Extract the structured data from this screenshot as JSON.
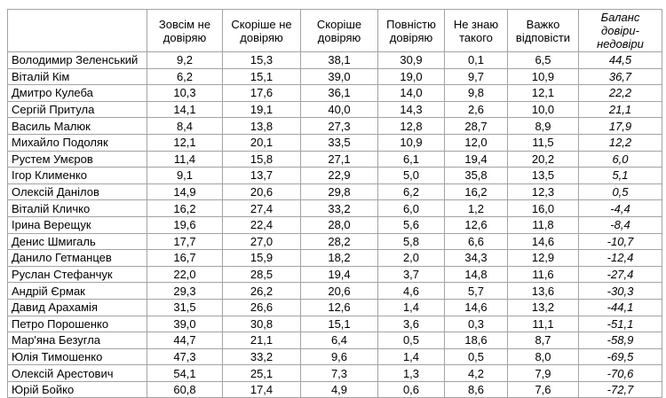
{
  "chart_data": {
    "type": "table",
    "title": "",
    "columns": [
      "",
      "Зовсім не довіряю",
      "Скоріше не довіряю",
      "Скоріше довіряю",
      "Повністю довіряю",
      "Не знаю такого",
      "Важко відповісти",
      "Баланс довіри-недовіри"
    ],
    "rows": [
      {
        "name": "Володимир Зеленський",
        "values": [
          "9,2",
          "15,3",
          "38,1",
          "30,9",
          "0,1",
          "6,5"
        ],
        "balance": "44,5"
      },
      {
        "name": "Віталій Кім",
        "values": [
          "6,2",
          "15,1",
          "39,0",
          "19,0",
          "9,7",
          "10,9"
        ],
        "balance": "36,7"
      },
      {
        "name": "Дмитро Кулеба",
        "values": [
          "10,3",
          "17,6",
          "36,1",
          "14,0",
          "9,8",
          "12,1"
        ],
        "balance": "22,2"
      },
      {
        "name": "Сергій Притула",
        "values": [
          "14,1",
          "19,1",
          "40,0",
          "14,3",
          "2,6",
          "10,0"
        ],
        "balance": "21,1"
      },
      {
        "name": "Василь Малюк",
        "values": [
          "8,4",
          "13,8",
          "27,3",
          "12,8",
          "28,7",
          "8,9"
        ],
        "balance": "17,9"
      },
      {
        "name": "Михайло Подоляк",
        "values": [
          "12,1",
          "20,1",
          "33,5",
          "10,9",
          "12,0",
          "11,5"
        ],
        "balance": "12,2"
      },
      {
        "name": "Рустем Умєров",
        "values": [
          "11,4",
          "15,8",
          "27,1",
          "6,1",
          "19,4",
          "20,2"
        ],
        "balance": "6,0"
      },
      {
        "name": "Ігор Клименко",
        "values": [
          "9,1",
          "13,7",
          "22,9",
          "5,0",
          "35,8",
          "13,5"
        ],
        "balance": "5,1"
      },
      {
        "name": "Олексій Данілов",
        "values": [
          "14,9",
          "20,6",
          "29,8",
          "6,2",
          "16,2",
          "12,3"
        ],
        "balance": "0,5"
      },
      {
        "name": "Віталій Кличко",
        "values": [
          "16,2",
          "27,4",
          "33,2",
          "6,0",
          "1,2",
          "16,0"
        ],
        "balance": "-4,4"
      },
      {
        "name": "Ірина Верещук",
        "values": [
          "19,6",
          "22,4",
          "28,0",
          "5,6",
          "12,6",
          "11,8"
        ],
        "balance": "-8,4"
      },
      {
        "name": "Денис Шмигаль",
        "values": [
          "17,7",
          "27,0",
          "28,2",
          "5,8",
          "6,6",
          "14,6"
        ],
        "balance": "-10,7"
      },
      {
        "name": "Данило Гетманцев",
        "values": [
          "16,7",
          "15,9",
          "18,2",
          "2,0",
          "34,3",
          "12,9"
        ],
        "balance": "-12,4"
      },
      {
        "name": "Руслан Стефанчук",
        "values": [
          "22,0",
          "28,5",
          "19,4",
          "3,7",
          "14,8",
          "11,6"
        ],
        "balance": "-27,4"
      },
      {
        "name": "Андрій Єрмак",
        "values": [
          "29,3",
          "26,2",
          "20,6",
          "4,6",
          "5,7",
          "13,6"
        ],
        "balance": "-30,3"
      },
      {
        "name": "Давид Арахамія",
        "values": [
          "31,5",
          "26,6",
          "12,6",
          "1,4",
          "14,6",
          "13,2"
        ],
        "balance": "-44,1"
      },
      {
        "name": "Петро Порошенко",
        "values": [
          "39,0",
          "30,8",
          "15,1",
          "3,6",
          "0,3",
          "11,1"
        ],
        "balance": "-51,1"
      },
      {
        "name": "Мар'яна Безугла",
        "values": [
          "44,7",
          "21,1",
          "6,4",
          "0,5",
          "18,6",
          "8,7"
        ],
        "balance": "-58,9"
      },
      {
        "name": "Юлія Тимошенко",
        "values": [
          "47,3",
          "33,2",
          "9,6",
          "1,4",
          "0,5",
          "8,0"
        ],
        "balance": "-69,5"
      },
      {
        "name": "Олексій Арестович",
        "values": [
          "54,1",
          "25,1",
          "7,3",
          "1,3",
          "4,2",
          "7,9"
        ],
        "balance": "-70,6"
      },
      {
        "name": "Юрій Бойко",
        "values": [
          "60,8",
          "17,4",
          "4,9",
          "0,6",
          "8,6",
          "7,6"
        ],
        "balance": "-72,7"
      }
    ]
  }
}
